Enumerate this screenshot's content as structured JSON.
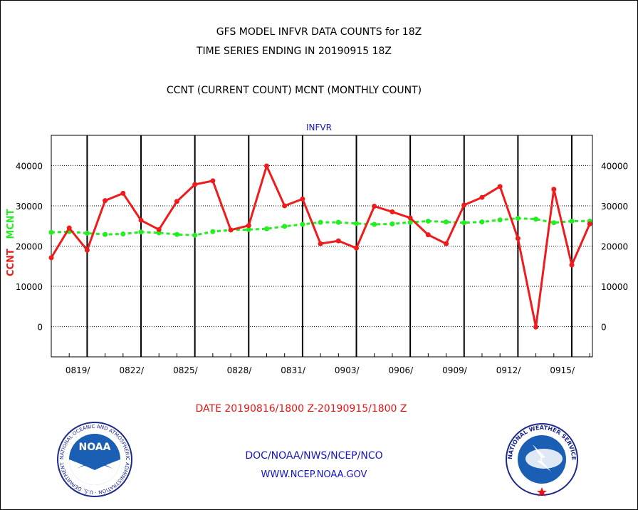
{
  "title": [
    "GFS MODEL INFVR DATA COUNTS for 18Z",
    "TIME SERIES ENDING IN 20190915 18Z",
    "CCNT (CURRENT COUNT) MCNT (MONTHLY COUNT)"
  ],
  "footer": {
    "date_range": "DATE 20190816/1800 Z-20190915/1800 Z",
    "org": "DOC/NOAA/NWS/NCEP/NCO",
    "url": "WWW.NCEP.NOAA.GOV"
  },
  "logos": {
    "noaa": "NOAA",
    "noaa_ring": "NATIONAL OCEANIC AND ATMOSPHERIC ADMINISTRATION · U.S. DEPARTMENT OF COMMERCE",
    "nws_ring": "NATIONAL WEATHER SERVICE"
  },
  "colors": {
    "ccnt": "#ee1c1c",
    "mcnt": "#22ee22",
    "axis_text": "#000000",
    "series_label": "#1414c8"
  },
  "chart_data": {
    "type": "line",
    "series_label": "INFVR",
    "ylabel_parts": [
      {
        "text": "CCNT",
        "color": "#ee1c1c"
      },
      {
        "text": "MCNT",
        "color": "#22ee22"
      }
    ],
    "ylim": [
      -7500,
      47500
    ],
    "yticks": [
      0,
      10000,
      20000,
      30000,
      40000
    ],
    "ytick_labels": [
      "0",
      "10000",
      "20000",
      "30000",
      "40000"
    ],
    "xlim": [
      0,
      30.15
    ],
    "xticks": [
      {
        "day": 2,
        "label": "0819/"
      },
      {
        "day": 5,
        "label": "0822/"
      },
      {
        "day": 8,
        "label": "0825/"
      },
      {
        "day": 11,
        "label": "0828/"
      },
      {
        "day": 14,
        "label": "0831/"
      },
      {
        "day": 17,
        "label": "0903/"
      },
      {
        "day": 20,
        "label": "0906/"
      },
      {
        "day": 23,
        "label": "0909/"
      },
      {
        "day": 26,
        "label": "0912/"
      },
      {
        "day": 29,
        "label": "0915/"
      }
    ],
    "x_note": "day offsets from 0817 18Z",
    "grid": true,
    "series": [
      {
        "name": "CCNT",
        "color": "#ee1c1c",
        "values": [
          17100,
          24500,
          19000,
          31300,
          33100,
          26400,
          24100,
          31100,
          35300,
          36200,
          24000,
          25100,
          39900,
          30000,
          31700,
          20600,
          21300,
          19500,
          29900,
          28500,
          27000,
          22800,
          20600,
          30200,
          32100,
          34800,
          21900,
          -100,
          34100,
          15300,
          25500
        ]
      },
      {
        "name": "MCNT",
        "color": "#22ee22",
        "values": [
          23400,
          23600,
          23200,
          22900,
          23000,
          23500,
          23300,
          22900,
          22700,
          23600,
          24000,
          24100,
          24300,
          24900,
          25400,
          25900,
          25900,
          25600,
          25400,
          25500,
          25900,
          26200,
          26000,
          25800,
          26000,
          26500,
          26900,
          26700,
          25800,
          26200,
          26200
        ]
      }
    ]
  }
}
